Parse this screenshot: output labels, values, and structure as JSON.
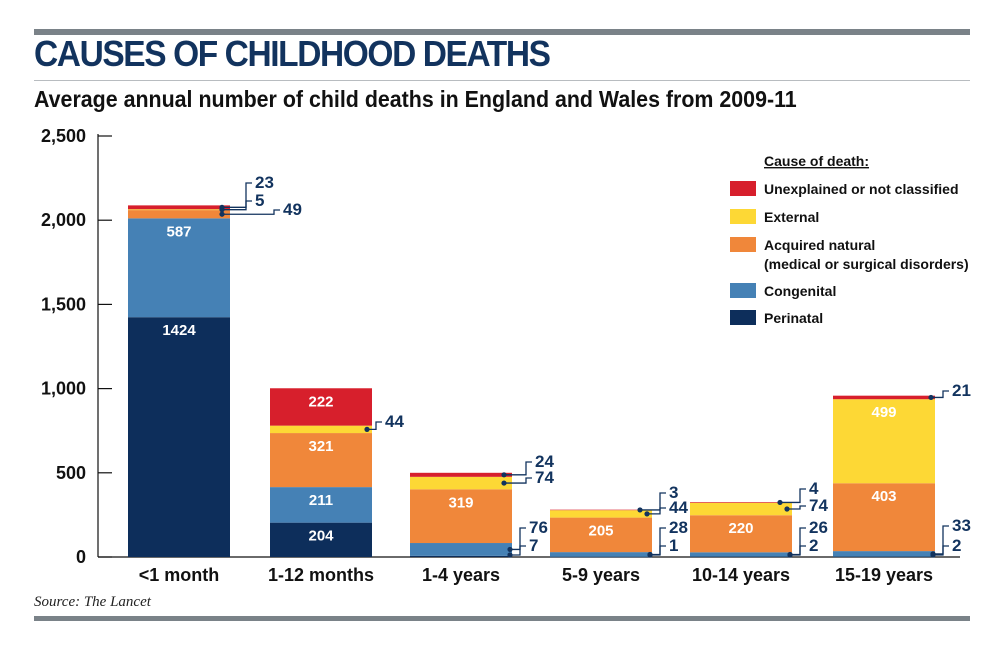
{
  "title": "CAUSES OF CHILDHOOD DEATHS",
  "subtitle": "Average annual number of child deaths in England and Wales from 2009-11",
  "source": "Source: The Lancet",
  "chart_data": {
    "type": "bar",
    "stacked": true,
    "categories": [
      "<1 month",
      "1-12 months",
      "1-4 years",
      "5-9 years",
      "10-14 years",
      "15-19 years"
    ],
    "ylim": [
      0,
      2500
    ],
    "yticks": [
      0,
      500,
      1000,
      1500,
      2000,
      2500
    ],
    "ytick_labels": [
      "0",
      "500",
      "1,000",
      "1,500",
      "2,000",
      "2,500"
    ],
    "legend_title": "Cause of death:",
    "legend_position": "top-right",
    "series": [
      {
        "name": "Perinatal",
        "color": "#0d2e5b",
        "values": [
          1424,
          204,
          7,
          1,
          2,
          2
        ]
      },
      {
        "name": "Congenital",
        "color": "#4581b5",
        "values": [
          587,
          211,
          76,
          28,
          26,
          33
        ]
      },
      {
        "name": "Acquired natural\n(medical or surgical disorders)",
        "color": "#f0873a",
        "values": [
          49,
          321,
          319,
          205,
          220,
          403
        ]
      },
      {
        "name": "External",
        "color": "#fdd835",
        "values": [
          5,
          44,
          74,
          44,
          74,
          499
        ]
      },
      {
        "name": "Unexplained or not classified",
        "color": "#d71f2c",
        "values": [
          23,
          222,
          24,
          3,
          4,
          21
        ]
      }
    ],
    "legend_order": [
      4,
      3,
      2,
      1,
      0
    ],
    "annotations": [
      {
        "category": 0,
        "series": 4,
        "text": "23"
      },
      {
        "category": 0,
        "series": 3,
        "text": "5"
      },
      {
        "category": 0,
        "series": 2,
        "text": "49"
      },
      {
        "category": 0,
        "series": 1,
        "text": "587",
        "inside": true
      },
      {
        "category": 0,
        "series": 0,
        "text": "1424",
        "inside": true
      },
      {
        "category": 1,
        "series": 4,
        "text": "222",
        "inside": true
      },
      {
        "category": 1,
        "series": 3,
        "text": "44"
      },
      {
        "category": 1,
        "series": 2,
        "text": "321",
        "inside": true
      },
      {
        "category": 1,
        "series": 1,
        "text": "211",
        "inside": true
      },
      {
        "category": 1,
        "series": 0,
        "text": "204",
        "inside": true
      },
      {
        "category": 2,
        "series": 4,
        "text": "24"
      },
      {
        "category": 2,
        "series": 3,
        "text": "74"
      },
      {
        "category": 2,
        "series": 2,
        "text": "319",
        "inside": true
      },
      {
        "category": 2,
        "series": 1,
        "text": "76"
      },
      {
        "category": 2,
        "series": 0,
        "text": "7"
      },
      {
        "category": 3,
        "series": 4,
        "text": "3"
      },
      {
        "category": 3,
        "series": 3,
        "text": "44"
      },
      {
        "category": 3,
        "series": 2,
        "text": "205",
        "inside": true
      },
      {
        "category": 3,
        "series": 1,
        "text": "28"
      },
      {
        "category": 3,
        "series": 0,
        "text": "1"
      },
      {
        "category": 4,
        "series": 4,
        "text": "4"
      },
      {
        "category": 4,
        "series": 3,
        "text": "74"
      },
      {
        "category": 4,
        "series": 2,
        "text": "220",
        "inside": true
      },
      {
        "category": 4,
        "series": 1,
        "text": "26"
      },
      {
        "category": 4,
        "series": 0,
        "text": "2"
      },
      {
        "category": 5,
        "series": 4,
        "text": "21"
      },
      {
        "category": 5,
        "series": 3,
        "text": "499",
        "inside": true
      },
      {
        "category": 5,
        "series": 2,
        "text": "403",
        "inside": true
      },
      {
        "category": 5,
        "series": 1,
        "text": "33"
      },
      {
        "category": 5,
        "series": 0,
        "text": "2"
      }
    ]
  }
}
